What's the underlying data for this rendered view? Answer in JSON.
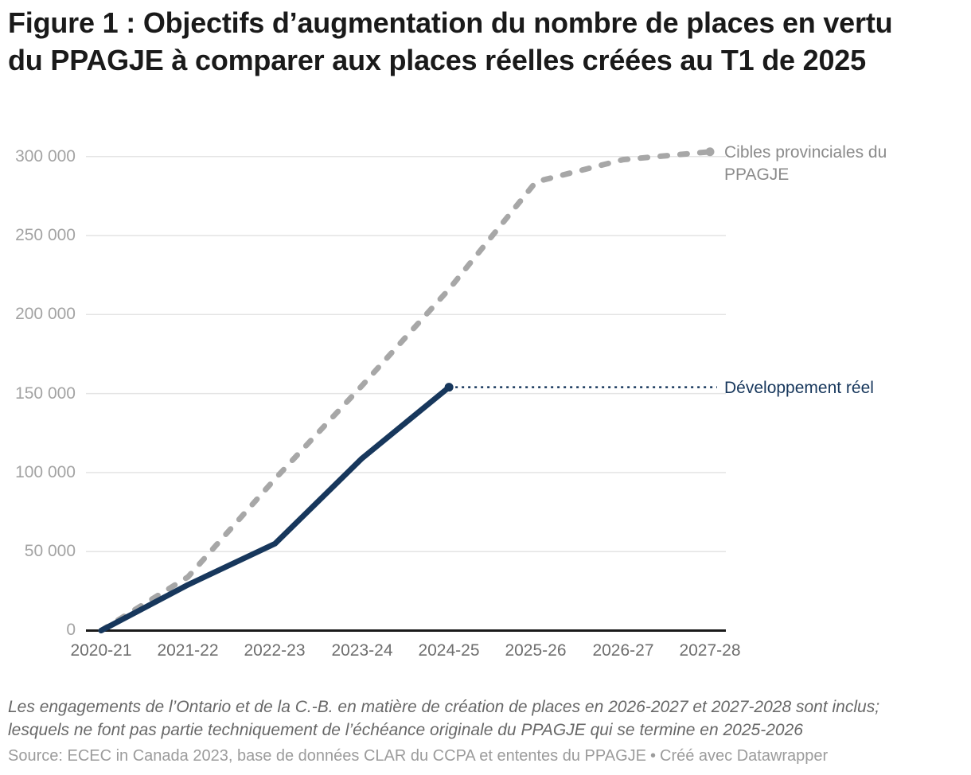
{
  "title": "Figure 1 : Objectifs d’augmentation du nombre de places en vertu du PPAGJE à comparer aux places réelles créées au T1 de 2025",
  "chart_data": {
    "type": "line",
    "title": "Figure 1 : Objectifs d’augmentation du nombre de places en vertu du PPAGJE à comparer aux places réelles créées au T1 de 2025",
    "categories": [
      "2020-21",
      "2021-22",
      "2022-23",
      "2023-24",
      "2024-25",
      "2025-26",
      "2026-27",
      "2027-28"
    ],
    "series": [
      {
        "name": "Cibles provinciales du PPAGJE",
        "values": [
          0,
          34000,
          96000,
          155000,
          216000,
          284000,
          298000,
          303000
        ],
        "color": "#a7a7a7",
        "style": "dashed"
      },
      {
        "name": "Développement réel",
        "values": [
          0,
          29000,
          55000,
          109000,
          154000
        ],
        "color": "#17375c",
        "style": "solid"
      }
    ],
    "xlabel": "",
    "ylabel": "",
    "ylim": [
      0,
      300000
    ],
    "y_tick_values": [
      0,
      50000,
      100000,
      150000,
      200000,
      250000,
      300000
    ],
    "y_tick_labels": [
      "0",
      "50 000",
      "100 000",
      "150 000",
      "200 000",
      "250 000",
      "300 000"
    ],
    "grid": "horizontal",
    "legend_position": "direct-right-labels"
  },
  "footnote": "Les engagements de l’Ontario et de la C.-B. en matière de création de places en 2026-2027 et 2027-2028 sont inclus; lesquels ne font pas partie techniquement de l’échéance originale du PPAGJE qui se termine en 2025-2026",
  "source": {
    "text": "Source: ECEC in Canada 2023, base de données CLAR du CCPA et ententes du PPAGJE",
    "separator": "•",
    "byline": "Créé avec Datawrapper"
  },
  "colors": {
    "target_line": "#a7a7a7",
    "actual_line": "#17375c",
    "gridline": "#e4e4e4",
    "axis_line": "#1a1a1a",
    "y_tick_text": "#a3a3a3",
    "x_tick_text": "#6e6e6e",
    "title_text": "#1a1a1a",
    "footnote_text": "#686868",
    "source_text": "#9c9c9c"
  }
}
